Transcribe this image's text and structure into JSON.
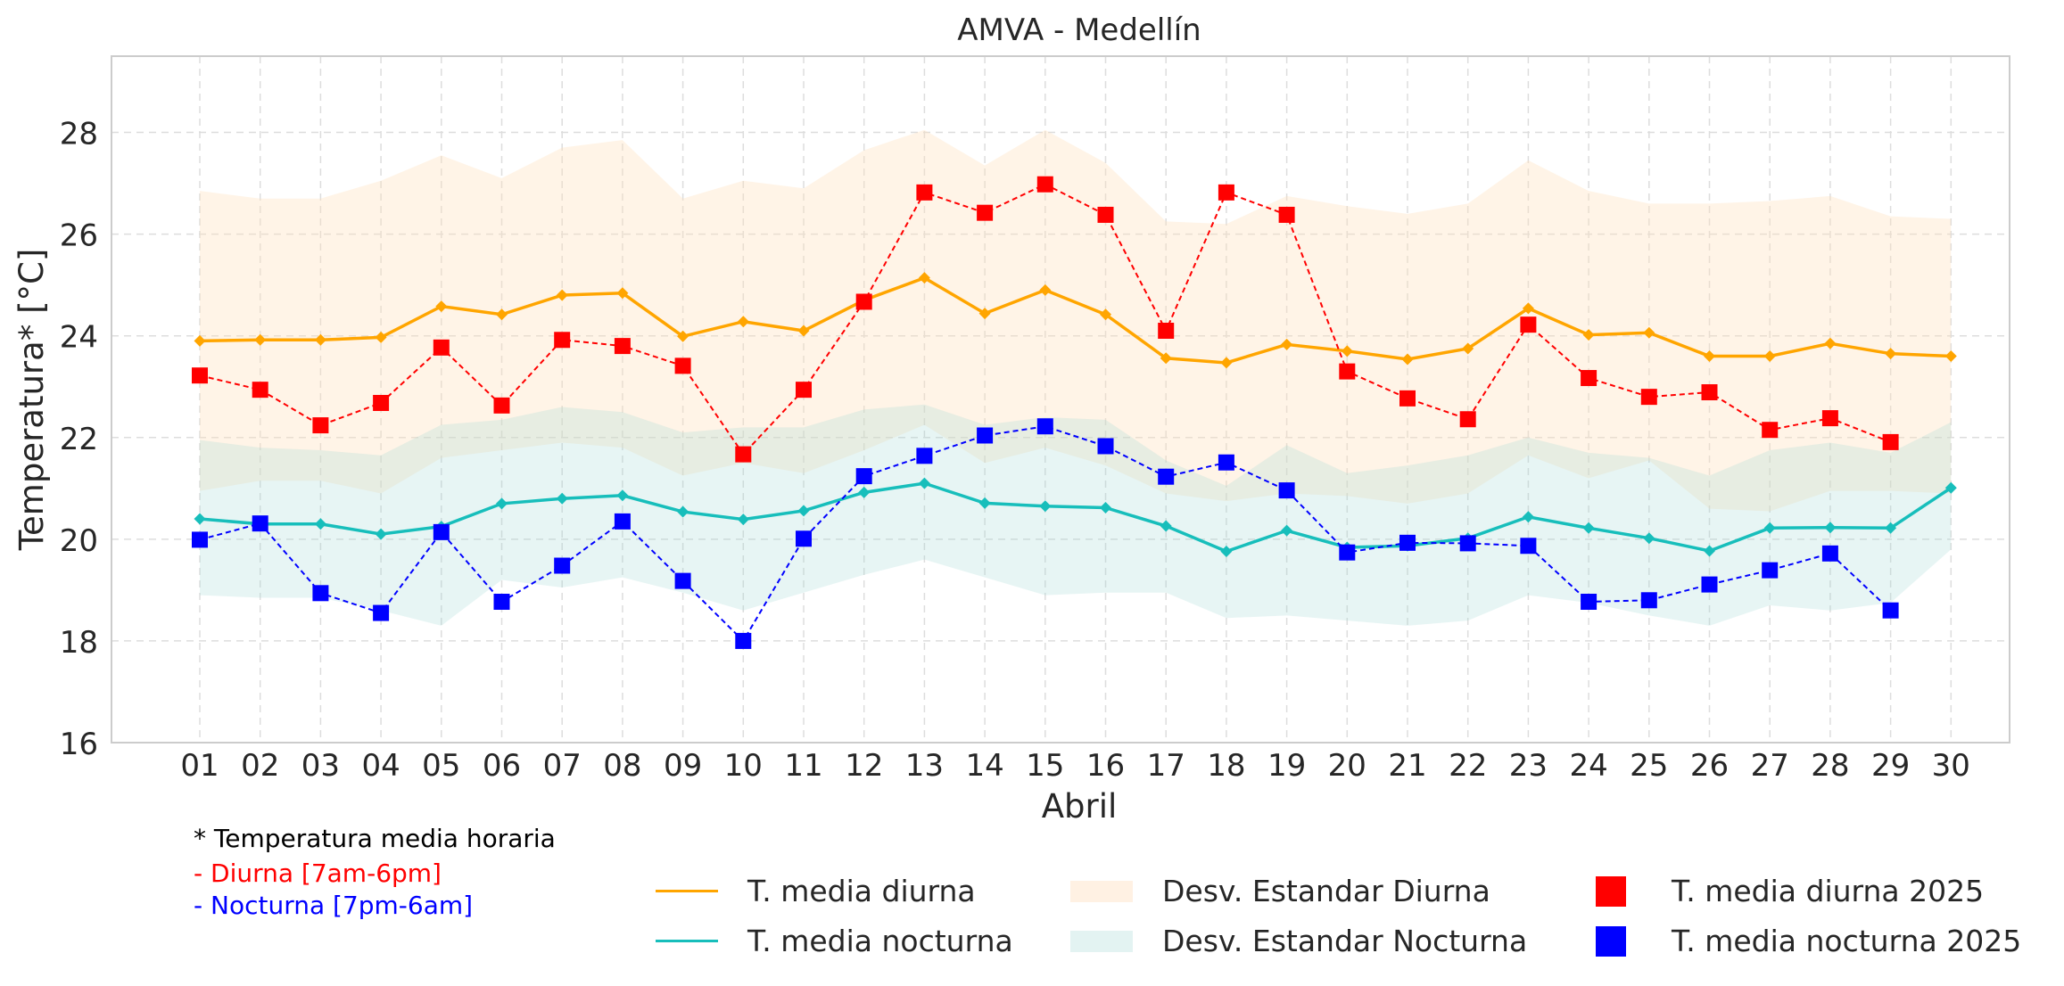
{
  "chart_data": {
    "type": "line",
    "title": "AMVA - Medellín",
    "xlabel": "Abril",
    "ylabel": "Temperatura* [°C]",
    "ylim": [
      16,
      29.5
    ],
    "yticks": [
      16,
      18,
      20,
      22,
      24,
      26,
      28
    ],
    "grid": true,
    "categories": [
      "01",
      "02",
      "03",
      "04",
      "05",
      "06",
      "07",
      "08",
      "09",
      "10",
      "11",
      "12",
      "13",
      "14",
      "15",
      "16",
      "17",
      "18",
      "19",
      "20",
      "21",
      "22",
      "23",
      "24",
      "25",
      "26",
      "27",
      "28",
      "29",
      "30"
    ],
    "series": [
      {
        "name": "T. media diurna",
        "kind": "line",
        "color": "#FFA500",
        "values": [
          23.9,
          23.92,
          23.92,
          23.97,
          24.58,
          24.42,
          24.8,
          24.84,
          23.99,
          24.28,
          24.1,
          24.7,
          25.14,
          24.44,
          24.9,
          24.42,
          23.56,
          23.47,
          23.83,
          23.7,
          23.54,
          23.75,
          24.54,
          24.02,
          24.06,
          23.6,
          23.6,
          23.85,
          23.65,
          23.6
        ]
      },
      {
        "name": "T. media nocturna",
        "kind": "line",
        "color": "#17BEBB",
        "values": [
          20.4,
          20.3,
          20.3,
          20.1,
          20.25,
          20.7,
          20.8,
          20.86,
          20.54,
          20.39,
          20.56,
          20.92,
          21.1,
          20.71,
          20.65,
          20.62,
          20.26,
          19.76,
          20.17,
          19.84,
          19.87,
          20.02,
          20.44,
          20.22,
          20.02,
          19.77,
          20.22,
          20.23,
          20.22,
          21.01
        ]
      },
      {
        "name": "Desv. Estandar Diurna",
        "kind": "band",
        "color": "#FFDFBA",
        "upper": [
          26.85,
          26.7,
          26.7,
          27.05,
          27.55,
          27.1,
          27.7,
          27.85,
          26.7,
          27.05,
          26.9,
          27.65,
          28.05,
          27.35,
          28.05,
          27.4,
          26.25,
          26.2,
          26.75,
          26.55,
          26.4,
          26.6,
          27.45,
          26.85,
          26.6,
          26.6,
          26.65,
          26.75,
          26.35,
          26.3
        ],
        "lower": [
          20.95,
          21.15,
          21.15,
          20.9,
          21.6,
          21.75,
          21.9,
          21.8,
          21.25,
          21.5,
          21.3,
          21.75,
          22.25,
          21.5,
          21.8,
          21.45,
          20.9,
          20.75,
          20.9,
          20.85,
          20.7,
          20.9,
          21.65,
          21.2,
          21.55,
          20.6,
          20.55,
          20.95,
          20.95,
          20.9
        ]
      },
      {
        "name": "Desv. Estandar Nocturna",
        "kind": "band",
        "color": "#BFE6E4",
        "upper": [
          21.95,
          21.8,
          21.75,
          21.65,
          22.25,
          22.35,
          22.6,
          22.5,
          22.1,
          22.2,
          22.2,
          22.55,
          22.65,
          22.25,
          22.4,
          22.35,
          21.55,
          21.05,
          21.85,
          21.3,
          21.45,
          21.65,
          22.0,
          21.7,
          21.6,
          21.25,
          21.75,
          21.9,
          21.7,
          22.3
        ],
        "lower": [
          18.9,
          18.85,
          18.85,
          18.6,
          18.3,
          19.2,
          19.05,
          19.25,
          18.95,
          18.6,
          18.95,
          19.3,
          19.6,
          19.25,
          18.9,
          18.95,
          18.95,
          18.45,
          18.5,
          18.4,
          18.3,
          18.4,
          18.9,
          18.75,
          18.5,
          18.3,
          18.7,
          18.6,
          18.75,
          19.8
        ]
      },
      {
        "name": "T. media diurna 2025",
        "kind": "markers",
        "color": "#FF0000",
        "values": [
          23.22,
          22.94,
          22.24,
          22.68,
          23.77,
          22.63,
          23.92,
          23.8,
          23.41,
          21.67,
          22.94,
          24.67,
          26.82,
          26.42,
          26.98,
          26.38,
          24.1,
          26.82,
          26.38,
          23.3,
          22.77,
          22.36,
          24.22,
          23.17,
          22.8,
          22.89,
          22.15,
          22.38,
          21.91,
          null
        ]
      },
      {
        "name": "T. media nocturna 2025",
        "kind": "markers",
        "color": "#0000FF",
        "values": [
          19.99,
          20.31,
          18.94,
          18.55,
          20.14,
          18.77,
          19.48,
          20.35,
          19.18,
          18.0,
          20.01,
          21.24,
          21.64,
          22.04,
          22.22,
          21.83,
          21.23,
          21.51,
          20.96,
          19.74,
          19.93,
          19.92,
          19.87,
          18.77,
          18.8,
          19.11,
          19.39,
          19.72,
          18.6,
          null
        ]
      }
    ]
  },
  "notes": {
    "line1": "* Temperatura media horaria",
    "line2": "- Diurna [7am-6pm]",
    "line3": "- Nocturna [7pm-6am]",
    "colors": {
      "line1": "#000000",
      "line2": "#FF0000",
      "line3": "#0000FF"
    }
  },
  "legend": {
    "diurna_line": "T. media diurna",
    "nocturna_line": "T. media nocturna",
    "diurna_band": "Desv. Estandar Diurna",
    "nocturna_band": "Desv. Estandar Nocturna",
    "diurna_2025": "T. media diurna 2025",
    "nocturna_2025": "T. media nocturna 2025"
  }
}
